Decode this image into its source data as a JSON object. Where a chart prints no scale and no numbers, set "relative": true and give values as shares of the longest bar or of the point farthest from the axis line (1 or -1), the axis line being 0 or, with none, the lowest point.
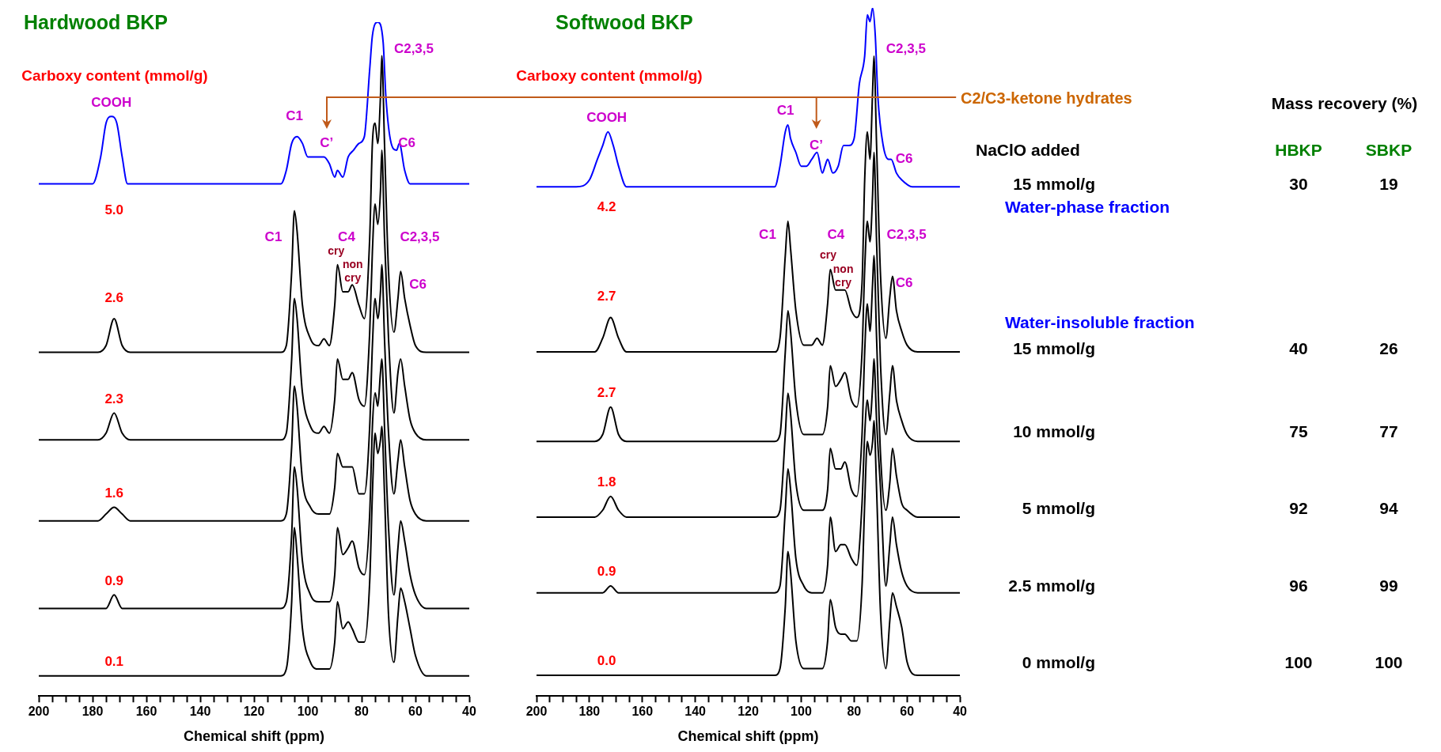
{
  "chart_data": [
    {
      "type": "line",
      "title": "Hardwood BKP",
      "xlabel": "Chemical shift (ppm)",
      "relative": true,
      "xlim": [
        200,
        40
      ],
      "xticks": [
        200,
        {
          "value": 195,
          "label": null
        },
        {
          "value": 190,
          "label": null
        },
        {
          "value": 185,
          "label": null
        },
        180,
        {
          "value": 175,
          "label": null
        },
        {
          "value": 170,
          "label": null
        },
        {
          "value": 165,
          "label": null
        },
        160,
        {
          "value": 155,
          "label": null
        },
        {
          "value": 150,
          "label": null
        },
        {
          "value": 145,
          "label": null
        },
        140,
        {
          "value": 135,
          "label": null
        },
        {
          "value": 130,
          "label": null
        },
        {
          "value": 125,
          "label": null
        },
        120,
        {
          "value": 115,
          "label": null
        },
        {
          "value": 110,
          "label": null
        },
        {
          "value": 105,
          "label": null
        },
        100,
        {
          "value": 95,
          "label": null
        },
        {
          "value": 90,
          "label": null
        },
        {
          "value": 85,
          "label": null
        },
        80,
        {
          "value": 75,
          "label": null
        },
        {
          "value": 70,
          "label": null
        },
        {
          "value": 65,
          "label": null
        },
        60,
        {
          "value": 55,
          "label": null
        },
        {
          "value": 50,
          "label": null
        },
        {
          "value": 45,
          "label": null
        },
        40
      ],
      "x": [
        200,
        178,
        175,
        172,
        169,
        166,
        110,
        108,
        106,
        105,
        104,
        102,
        99,
        96,
        94,
        92,
        90,
        89,
        87,
        85,
        83.5,
        81,
        79,
        77,
        76,
        75,
        74,
        73,
        72.5,
        71.5,
        70,
        68,
        66.5,
        65.5,
        64,
        62,
        60,
        56,
        40
      ],
      "series": [
        {
          "color": "#0000ff",
          "x": [
            200,
            185,
            180,
            177,
            175,
            173,
            171,
            169,
            167,
            164,
            120,
            110,
            108,
            106,
            104,
            102,
            100,
            97,
            94,
            92,
            90,
            89,
            87,
            85,
            83,
            81,
            79,
            77,
            76,
            74,
            72,
            71,
            69,
            67,
            66,
            64,
            62,
            58,
            40
          ],
          "values": [
            0.76,
            0.76,
            0.76,
            0.8,
            0.85,
            0.86,
            0.85,
            0.8,
            0.76,
            0.76,
            0.76,
            0.76,
            0.78,
            0.82,
            0.83,
            0.82,
            0.8,
            0.8,
            0.8,
            0.79,
            0.77,
            0.78,
            0.77,
            0.8,
            0.81,
            0.82,
            0.83,
            0.93,
            0.98,
            1,
            0.97,
            0.89,
            0.82,
            0.81,
            0.82,
            0.78,
            0.76,
            0.76,
            0.76
          ]
        },
        {
          "color": "#000000",
          "values": [
            0.51,
            0.51,
            0.52,
            0.56,
            0.52,
            0.51,
            0.51,
            0.52,
            0.63,
            0.72,
            0.69,
            0.58,
            0.53,
            0.52,
            0.53,
            0.52,
            0.58,
            0.64,
            0.6,
            0.6,
            0.61,
            0.58,
            0.56,
            0.68,
            0.82,
            0.85,
            0.82,
            0.89,
            0.95,
            0.82,
            0.63,
            0.54,
            0.59,
            0.63,
            0.59,
            0.55,
            0.52,
            0.51,
            0.51
          ]
        },
        {
          "color": "#000000",
          "values": [
            0.38,
            0.38,
            0.39,
            0.42,
            0.39,
            0.38,
            0.38,
            0.39,
            0.5,
            0.59,
            0.56,
            0.45,
            0.4,
            0.39,
            0.4,
            0.39,
            0.44,
            0.5,
            0.47,
            0.47,
            0.48,
            0.44,
            0.43,
            0.54,
            0.66,
            0.73,
            0.7,
            0.75,
            0.81,
            0.68,
            0.53,
            0.42,
            0.48,
            0.5,
            0.46,
            0.41,
            0.39,
            0.38,
            0.38
          ]
        },
        {
          "color": "#000000",
          "values": [
            0.26,
            0.26,
            0.27,
            0.28,
            0.27,
            0.26,
            0.26,
            0.27,
            0.37,
            0.46,
            0.43,
            0.32,
            0.28,
            0.27,
            0.27,
            0.27,
            0.31,
            0.36,
            0.34,
            0.34,
            0.34,
            0.3,
            0.3,
            0.4,
            0.52,
            0.59,
            0.56,
            0.6,
            0.64,
            0.53,
            0.39,
            0.3,
            0.35,
            0.38,
            0.34,
            0.29,
            0.27,
            0.26,
            0.26
          ]
        },
        {
          "color": "#000000",
          "values": [
            0.13,
            0.13,
            0.13,
            0.15,
            0.13,
            0.13,
            0.13,
            0.14,
            0.24,
            0.34,
            0.31,
            0.2,
            0.15,
            0.14,
            0.14,
            0.14,
            0.18,
            0.25,
            0.21,
            0.22,
            0.23,
            0.19,
            0.18,
            0.27,
            0.4,
            0.45,
            0.43,
            0.48,
            0.5,
            0.4,
            0.25,
            0.15,
            0.22,
            0.26,
            0.23,
            0.18,
            0.15,
            0.13,
            0.13
          ]
        },
        {
          "color": "#000000",
          "values": [
            0.03,
            0.03,
            0.03,
            0.03,
            0.03,
            0.03,
            0.03,
            0.04,
            0.14,
            0.25,
            0.21,
            0.1,
            0.05,
            0.04,
            0.04,
            0.04,
            0.08,
            0.14,
            0.1,
            0.11,
            0.1,
            0.08,
            0.08,
            0.17,
            0.3,
            0.39,
            0.36,
            0.38,
            0.4,
            0.3,
            0.12,
            0.05,
            0.12,
            0.16,
            0.14,
            0.1,
            0.06,
            0.03,
            0.03
          ]
        }
      ],
      "annotations": [
        "Carboxy content (mmol/g)",
        "5.0",
        "2.6",
        "2.3",
        "1.6",
        "0.9",
        "0.1",
        "COOH",
        "C1",
        "C’",
        "C2,3,5",
        "C6",
        "C1",
        "C4",
        "cry",
        "non",
        "cry",
        "C2,3,5",
        "C6"
      ]
    },
    {
      "type": "line",
      "title": "Softwood BKP",
      "xlabel": "Chemical shift (ppm)",
      "relative": true,
      "xlim": [
        200,
        40
      ],
      "xticks": [
        200,
        {
          "value": 195,
          "label": null
        },
        {
          "value": 190,
          "label": null
        },
        {
          "value": 185,
          "label": null
        },
        180,
        {
          "value": 175,
          "label": null
        },
        {
          "value": 170,
          "label": null
        },
        {
          "value": 165,
          "label": null
        },
        160,
        {
          "value": 155,
          "label": null
        },
        {
          "value": 150,
          "label": null
        },
        {
          "value": 145,
          "label": null
        },
        140,
        {
          "value": 135,
          "label": null
        },
        {
          "value": 130,
          "label": null
        },
        {
          "value": 125,
          "label": null
        },
        120,
        {
          "value": 115,
          "label": null
        },
        {
          "value": 110,
          "label": null
        },
        {
          "value": 105,
          "label": null
        },
        100,
        {
          "value": 95,
          "label": null
        },
        {
          "value": 90,
          "label": null
        },
        {
          "value": 85,
          "label": null
        },
        80,
        {
          "value": 75,
          "label": null
        },
        {
          "value": 70,
          "label": null
        },
        {
          "value": 65,
          "label": null
        },
        60,
        {
          "value": 55,
          "label": null
        },
        {
          "value": 50,
          "label": null
        },
        {
          "value": 45,
          "label": null
        },
        40
      ],
      "x": [
        200,
        178,
        175,
        172,
        169,
        166,
        110,
        108,
        106,
        105,
        104,
        102,
        99,
        96,
        94,
        92,
        90,
        89,
        87,
        85,
        83.5,
        81,
        79,
        77,
        76,
        75,
        74,
        73,
        72.5,
        71.5,
        70,
        68,
        66.5,
        65.5,
        64,
        62,
        60,
        56,
        40
      ],
      "series": [
        {
          "color": "#0000ff",
          "x": [
            200,
            185,
            180,
            177,
            175,
            173,
            171,
            169,
            166,
            120,
            110,
            108,
            106,
            105,
            104,
            102,
            100,
            98,
            96,
            94,
            92,
            91,
            90,
            88,
            86,
            84,
            82,
            80,
            78,
            76,
            75,
            74,
            73,
            72,
            71,
            69,
            67,
            66,
            64,
            62,
            58,
            40
          ],
          "values": [
            0.74,
            0.74,
            0.75,
            0.78,
            0.8,
            0.82,
            0.8,
            0.77,
            0.74,
            0.74,
            0.74,
            0.77,
            0.82,
            0.83,
            0.81,
            0.79,
            0.77,
            0.77,
            0.78,
            0.79,
            0.76,
            0.77,
            0.78,
            0.76,
            0.77,
            0.8,
            0.8,
            0.81,
            0.89,
            0.93,
            0.99,
            0.98,
            1,
            0.96,
            0.87,
            0.8,
            0.78,
            0.78,
            0.76,
            0.75,
            0.74,
            0.74
          ]
        },
        {
          "color": "#000000",
          "values": [
            0.5,
            0.5,
            0.52,
            0.55,
            0.52,
            0.5,
            0.5,
            0.52,
            0.64,
            0.69,
            0.65,
            0.56,
            0.51,
            0.51,
            0.52,
            0.51,
            0.57,
            0.62,
            0.59,
            0.59,
            0.59,
            0.56,
            0.55,
            0.6,
            0.75,
            0.82,
            0.78,
            0.88,
            0.93,
            0.8,
            0.61,
            0.52,
            0.58,
            0.61,
            0.56,
            0.53,
            0.51,
            0.5,
            0.5
          ]
        },
        {
          "color": "#000000",
          "values": [
            0.37,
            0.37,
            0.38,
            0.42,
            0.38,
            0.37,
            0.37,
            0.38,
            0.5,
            0.56,
            0.53,
            0.43,
            0.38,
            0.38,
            0.38,
            0.38,
            0.42,
            0.48,
            0.45,
            0.46,
            0.47,
            0.43,
            0.42,
            0.5,
            0.62,
            0.69,
            0.66,
            0.73,
            0.79,
            0.66,
            0.48,
            0.38,
            0.44,
            0.48,
            0.43,
            0.4,
            0.38,
            0.37,
            0.37
          ]
        },
        {
          "color": "#000000",
          "values": [
            0.26,
            0.26,
            0.27,
            0.29,
            0.27,
            0.26,
            0.26,
            0.27,
            0.38,
            0.44,
            0.41,
            0.31,
            0.27,
            0.27,
            0.27,
            0.27,
            0.3,
            0.36,
            0.33,
            0.33,
            0.34,
            0.3,
            0.29,
            0.38,
            0.5,
            0.57,
            0.53,
            0.6,
            0.64,
            0.52,
            0.35,
            0.27,
            0.31,
            0.36,
            0.32,
            0.28,
            0.27,
            0.26,
            0.26
          ]
        },
        {
          "color": "#000000",
          "values": [
            0.15,
            0.15,
            0.15,
            0.16,
            0.15,
            0.15,
            0.15,
            0.16,
            0.27,
            0.33,
            0.3,
            0.2,
            0.16,
            0.15,
            0.15,
            0.15,
            0.19,
            0.26,
            0.21,
            0.22,
            0.22,
            0.2,
            0.19,
            0.28,
            0.38,
            0.43,
            0.4,
            0.45,
            0.49,
            0.4,
            0.3,
            0.16,
            0.22,
            0.26,
            0.22,
            0.18,
            0.16,
            0.15,
            0.15
          ]
        },
        {
          "color": "#000000",
          "values": [
            0.03,
            0.03,
            0.03,
            0.03,
            0.03,
            0.03,
            0.03,
            0.04,
            0.13,
            0.21,
            0.18,
            0.08,
            0.04,
            0.04,
            0.04,
            0.04,
            0.08,
            0.14,
            0.1,
            0.09,
            0.09,
            0.08,
            0.08,
            0.16,
            0.28,
            0.37,
            0.35,
            0.37,
            0.4,
            0.3,
            0.12,
            0.04,
            0.11,
            0.15,
            0.13,
            0.1,
            0.05,
            0.03,
            0.03
          ]
        }
      ],
      "annotations": [
        "Carboxy content (mmol/g)",
        "4.2",
        "2.7",
        "2.7",
        "1.8",
        "0.9",
        "0.0",
        "COOH",
        "C1",
        "C’",
        "C2,3,5",
        "C6",
        "C1",
        "C4",
        "cry",
        "non",
        "cry",
        "C2,3,5",
        "C6",
        "C2/C3-ketone hydrates"
      ]
    },
    {
      "type": "other",
      "title": "Mass recovery (%)",
      "annotations": [
        "NaClO added",
        "HBKP",
        "SBKP",
        "15 mmol/g",
        "30",
        "19",
        "Water-phase fraction",
        "Water-insoluble fraction",
        "15 mmol/g",
        "40",
        "26",
        "10 mmol/g",
        "75",
        "77",
        "5 mmol/g",
        "92",
        "94",
        "2.5 mmol/g",
        "96",
        "99",
        "0 mmol/g",
        "100",
        "100"
      ]
    }
  ]
}
